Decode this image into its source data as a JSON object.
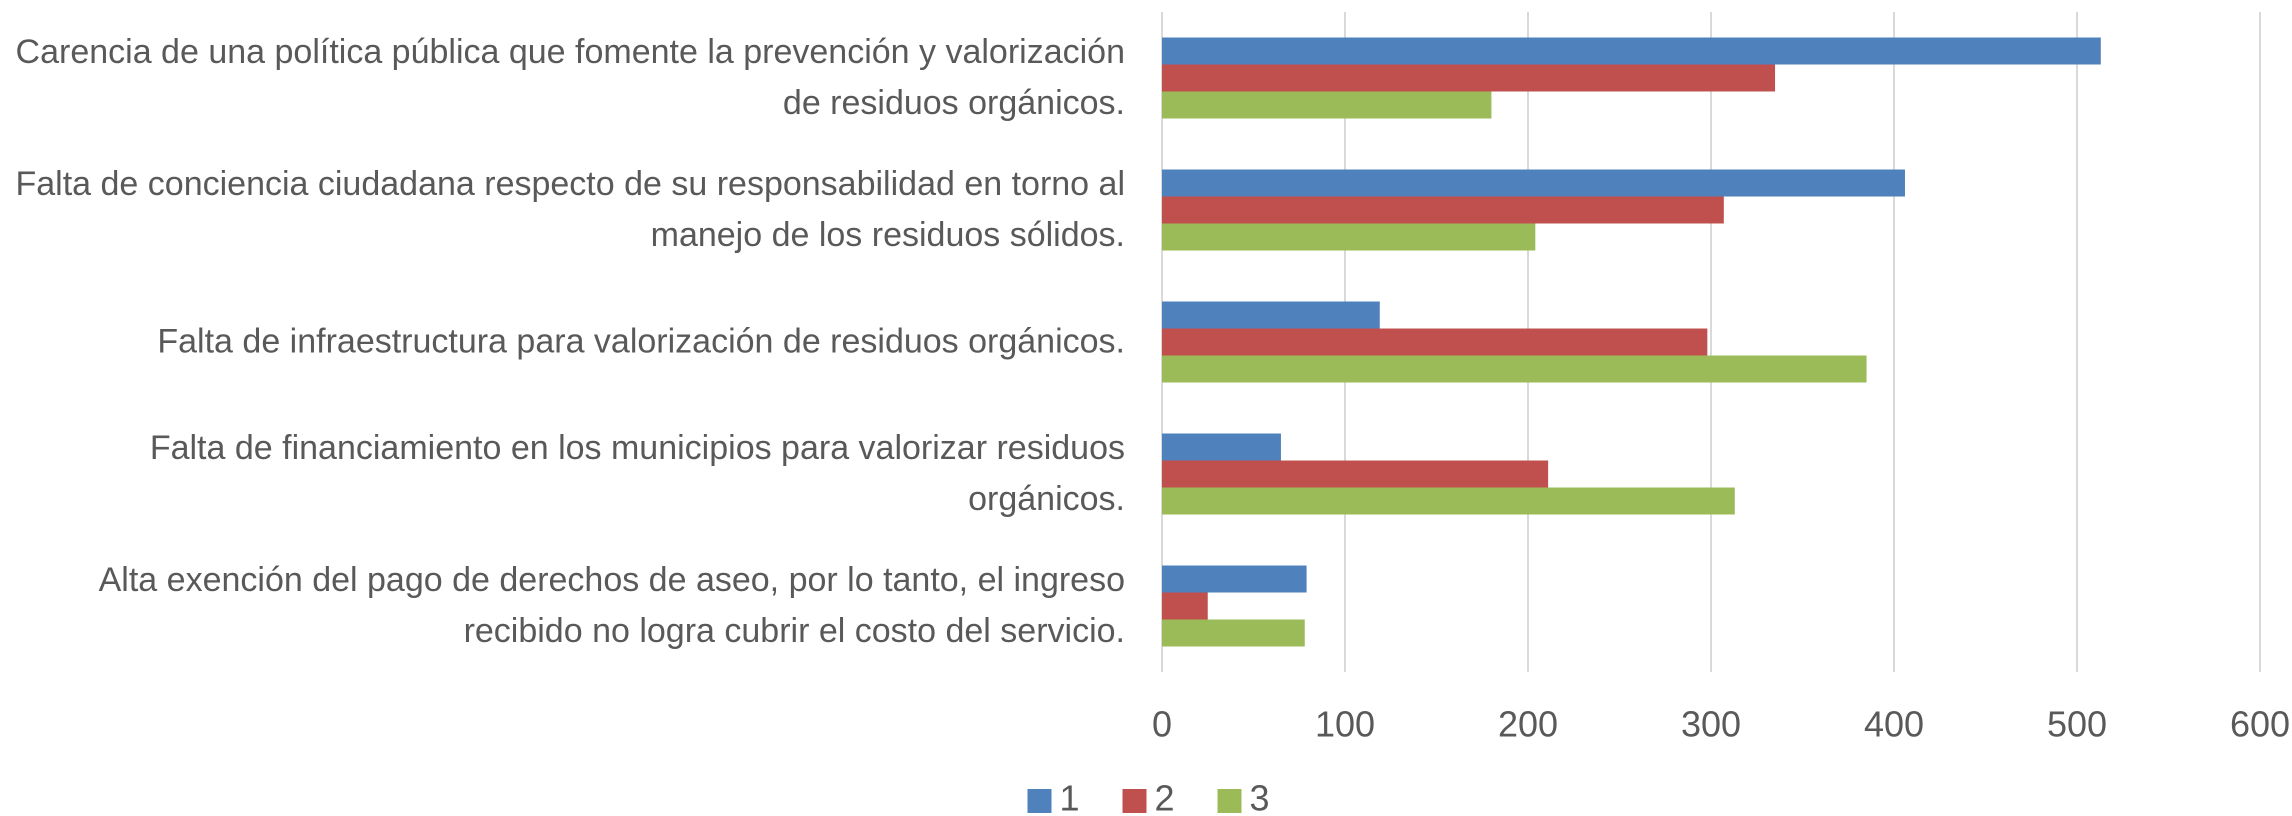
{
  "chart_data": {
    "type": "bar",
    "orientation": "horizontal",
    "categories": [
      "Carencia de una política pública que fomente la prevención y valorización de residuos orgánicos.",
      "Falta de conciencia ciudadana respecto de su responsabilidad en torno al manejo de los residuos sólidos.",
      "Falta de infraestructura para valorización de residuos orgánicos.",
      "Falta de financiamiento en los municipios para valorizar residuos orgánicos.",
      "Alta exención del pago de derechos de aseo, por lo tanto, el ingreso recibido no logra cubrir el costo del servicio."
    ],
    "series": [
      {
        "name": "1",
        "color": "#4f81bd",
        "values": [
          513,
          406,
          119,
          65,
          79
        ]
      },
      {
        "name": "2",
        "color": "#c0504d",
        "values": [
          335,
          307,
          298,
          211,
          25
        ]
      },
      {
        "name": "3",
        "color": "#9bbb59",
        "values": [
          180,
          204,
          385,
          313,
          78
        ]
      }
    ],
    "xlim": [
      0,
      600
    ],
    "xticks": [
      0,
      100,
      200,
      300,
      400,
      500,
      600
    ],
    "grid": true,
    "legend": "bottom"
  }
}
